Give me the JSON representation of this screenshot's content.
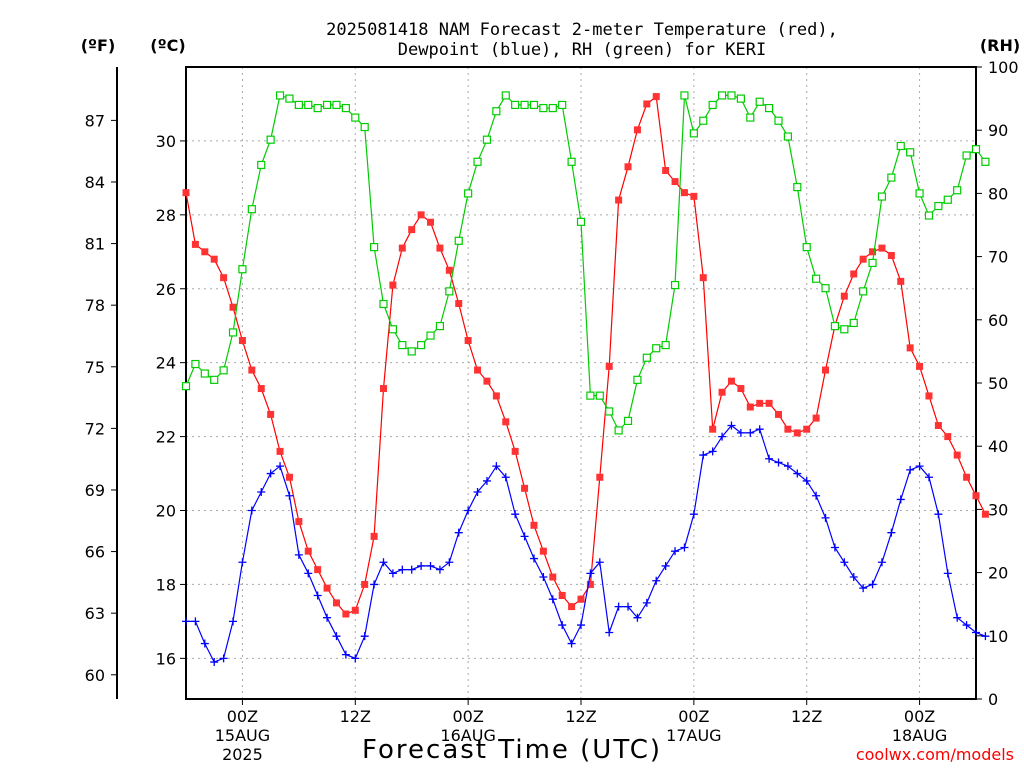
{
  "chart_data": {
    "type": "line",
    "title_lines": [
      "2025081418 NAM Forecast 2-meter Temperature (red),",
      "Dewpoint (blue), RH (green) for KERI"
    ],
    "xlabel": "Forecast Time (UTC)",
    "credit": "coolwx.com/models",
    "unit_labels": {
      "left_f": "(ºF)",
      "left_c": "(ºC)",
      "right_rh": "(RH)"
    },
    "x_ticks": [
      {
        "hour": 6,
        "label": "00Z",
        "date": "15AUG",
        "year": "2025"
      },
      {
        "hour": 18,
        "label": "12Z"
      },
      {
        "hour": 30,
        "label": "00Z",
        "date": "16AUG"
      },
      {
        "hour": 42,
        "label": "12Z"
      },
      {
        "hour": 54,
        "label": "00Z",
        "date": "17AUG"
      },
      {
        "hour": 66,
        "label": "12Z"
      },
      {
        "hour": 78,
        "label": "00Z",
        "date": "18AUG"
      }
    ],
    "x_range_hours": [
      0,
      84
    ],
    "c_ticks": [
      16,
      18,
      20,
      22,
      24,
      26,
      28,
      30
    ],
    "c_range": [
      14.9,
      32.0
    ],
    "f_ticks": [
      60,
      63,
      66,
      69,
      72,
      75,
      78,
      81,
      84,
      87
    ],
    "rh_ticks": [
      0,
      10,
      20,
      30,
      40,
      50,
      60,
      70,
      80,
      90,
      100
    ],
    "rh_range": [
      0,
      100
    ],
    "grid": true,
    "colors": {
      "temperature": "#ff0000",
      "temperature_marker": "#ff3333",
      "dewpoint": "#0000ff",
      "rh": "#00cc00",
      "grid": "#aaaaaa",
      "credit": "#ff0000"
    },
    "series": [
      {
        "name": "Temperature",
        "axis": "celsius",
        "marker": "filled-square",
        "values": [
          28.6,
          27.2,
          27.0,
          26.8,
          26.3,
          25.5,
          24.6,
          23.8,
          23.3,
          22.6,
          21.6,
          20.9,
          19.7,
          18.9,
          18.4,
          17.9,
          17.5,
          17.2,
          17.3,
          18.0,
          19.3,
          23.3,
          26.1,
          27.1,
          27.6,
          28.0,
          27.8,
          27.1,
          26.5,
          25.6,
          24.6,
          23.8,
          23.5,
          23.1,
          22.4,
          21.6,
          20.6,
          19.6,
          18.9,
          18.2,
          17.7,
          17.4,
          17.6,
          18.0,
          20.9,
          23.9,
          28.4,
          29.3,
          30.3,
          31.0,
          31.2,
          29.2,
          28.9,
          28.6,
          28.5,
          26.3,
          22.2,
          23.2,
          23.5,
          23.3,
          22.8,
          22.9,
          22.9,
          22.6,
          22.2,
          22.1,
          22.2,
          22.5,
          23.8,
          25.0,
          25.8,
          26.4,
          26.8,
          27.0,
          27.1,
          26.9,
          26.2,
          24.4,
          23.9,
          23.1,
          22.3,
          22.0,
          21.5,
          20.9,
          20.4,
          19.9
        ]
      },
      {
        "name": "Dewpoint",
        "axis": "celsius",
        "marker": "plus",
        "values": [
          17.0,
          17.0,
          16.4,
          15.9,
          16.0,
          17.0,
          18.6,
          20.0,
          20.5,
          21.0,
          21.2,
          20.4,
          18.8,
          18.3,
          17.7,
          17.1,
          16.6,
          16.1,
          16.0,
          16.6,
          18.0,
          18.6,
          18.3,
          18.4,
          18.4,
          18.5,
          18.5,
          18.4,
          18.6,
          19.4,
          20.0,
          20.5,
          20.8,
          21.2,
          20.9,
          19.9,
          19.3,
          18.7,
          18.2,
          17.6,
          16.9,
          16.4,
          16.9,
          18.3,
          18.6,
          16.7,
          17.4,
          17.4,
          17.1,
          17.5,
          18.1,
          18.5,
          18.9,
          19.0,
          19.9,
          21.5,
          21.6,
          22.0,
          22.3,
          22.1,
          22.1,
          22.2,
          21.4,
          21.3,
          21.2,
          21.0,
          20.8,
          20.4,
          19.8,
          19.0,
          18.6,
          18.2,
          17.9,
          18.0,
          18.6,
          19.4,
          20.3,
          21.1,
          21.2,
          20.9,
          19.9,
          18.3,
          17.1,
          16.9,
          16.7,
          16.6
        ]
      },
      {
        "name": "RH",
        "axis": "rh",
        "marker": "open-square",
        "values": [
          49.5,
          53.0,
          51.5,
          50.5,
          52.0,
          58.0,
          68.0,
          77.5,
          84.5,
          88.5,
          95.5,
          95.0,
          94.0,
          94.0,
          93.5,
          94.0,
          94.0,
          93.5,
          92.0,
          90.5,
          71.5,
          62.5,
          58.5,
          56.0,
          55.0,
          56.0,
          57.5,
          59.0,
          64.5,
          72.5,
          80.0,
          85.0,
          88.5,
          93.0,
          95.5,
          94.0,
          94.0,
          94.0,
          93.5,
          93.5,
          94.0,
          85.0,
          75.5,
          48.0,
          48.0,
          45.5,
          42.5,
          44.0,
          50.5,
          54.0,
          55.5,
          56.0,
          65.5,
          95.5,
          89.5,
          91.5,
          94.0,
          95.5,
          95.5,
          95.0,
          92.0,
          94.5,
          93.5,
          91.5,
          89.0,
          81.0,
          71.5,
          66.5,
          65.0,
          59.0,
          58.5,
          59.5,
          64.5,
          69.0,
          79.5,
          82.5,
          87.5,
          86.5,
          80.0,
          76.5,
          78.0,
          79.0,
          80.5,
          86.0,
          87.0,
          85.0
        ]
      }
    ]
  }
}
